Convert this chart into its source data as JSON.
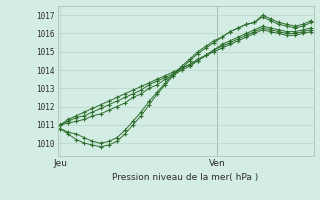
{
  "background_color": "#d4ede4",
  "grid_color": "#b8d4c8",
  "line_color": "#2d6e2d",
  "marker_color": "#2d6e2d",
  "ylabel_ticks": [
    1010,
    1011,
    1012,
    1013,
    1014,
    1015,
    1016,
    1017
  ],
  "ylim": [
    1009.3,
    1017.5
  ],
  "xlabel": "Pression niveau de la mer( hPa )",
  "xtick_labels": [
    "Jeu",
    "Ven"
  ],
  "xtick_pos_jeu": 0.0,
  "xtick_pos_ven": 0.625,
  "series": [
    [
      1010.8,
      1010.6,
      1010.5,
      1010.3,
      1010.1,
      1010.0,
      1010.1,
      1010.3,
      1010.7,
      1011.2,
      1011.7,
      1012.3,
      1012.8,
      1013.3,
      1013.8,
      1014.2,
      1014.6,
      1015.0,
      1015.3,
      1015.6,
      1015.8,
      1016.1,
      1016.3,
      1016.5,
      1016.6,
      1017.0,
      1016.8,
      1016.6,
      1016.5,
      1016.4,
      1016.5,
      1016.7
    ],
    [
      1010.8,
      1010.5,
      1010.2,
      1010.0,
      1009.9,
      1009.8,
      1009.9,
      1010.1,
      1010.5,
      1011.0,
      1011.5,
      1012.1,
      1012.7,
      1013.2,
      1013.7,
      1014.1,
      1014.5,
      1014.9,
      1015.2,
      1015.5,
      1015.8,
      1016.1,
      1016.3,
      1016.5,
      1016.6,
      1016.9,
      1016.7,
      1016.5,
      1016.4,
      1016.3,
      1016.4,
      1016.6
    ],
    [
      1011.0,
      1011.1,
      1011.2,
      1011.3,
      1011.5,
      1011.6,
      1011.8,
      1012.0,
      1012.2,
      1012.5,
      1012.7,
      1013.0,
      1013.2,
      1013.5,
      1013.7,
      1014.0,
      1014.2,
      1014.5,
      1014.8,
      1015.1,
      1015.4,
      1015.6,
      1015.8,
      1016.0,
      1016.2,
      1016.4,
      1016.3,
      1016.2,
      1016.1,
      1016.1,
      1016.2,
      1016.3
    ],
    [
      1011.0,
      1011.2,
      1011.4,
      1011.5,
      1011.7,
      1011.9,
      1012.1,
      1012.3,
      1012.5,
      1012.7,
      1012.9,
      1013.2,
      1013.4,
      1013.6,
      1013.8,
      1014.1,
      1014.3,
      1014.6,
      1014.8,
      1015.1,
      1015.3,
      1015.5,
      1015.7,
      1015.9,
      1016.1,
      1016.3,
      1016.2,
      1016.1,
      1016.0,
      1016.0,
      1016.1,
      1016.2
    ],
    [
      1011.0,
      1011.3,
      1011.5,
      1011.7,
      1011.9,
      1012.1,
      1012.3,
      1012.5,
      1012.7,
      1012.9,
      1013.1,
      1013.3,
      1013.5,
      1013.7,
      1013.9,
      1014.1,
      1014.3,
      1014.5,
      1014.8,
      1015.0,
      1015.2,
      1015.4,
      1015.6,
      1015.8,
      1016.0,
      1016.2,
      1016.1,
      1016.0,
      1015.9,
      1015.9,
      1016.0,
      1016.1
    ]
  ]
}
